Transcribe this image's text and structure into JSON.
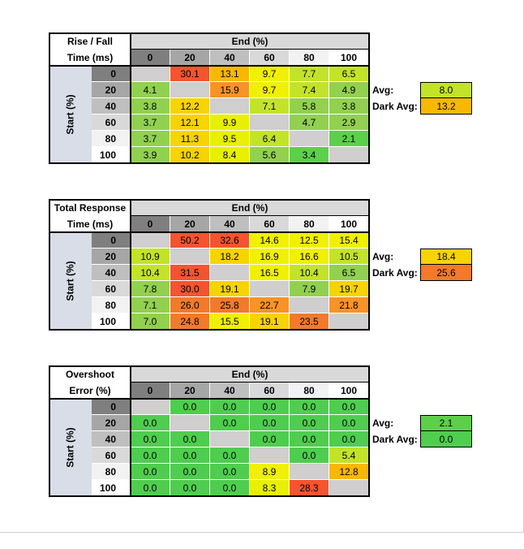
{
  "chart_data": [
    {
      "type": "table",
      "title_lines": [
        "Rise / Fall",
        "Time (ms)"
      ],
      "col_axis_label": "End (%)",
      "row_axis_label": "Start (%)",
      "columns": [
        "0",
        "20",
        "40",
        "60",
        "80",
        "100"
      ],
      "rows": [
        "0",
        "20",
        "40",
        "60",
        "80",
        "100"
      ],
      "values": [
        [
          "",
          "30.1",
          "13.1",
          "9.7",
          "7.7",
          "6.5"
        ],
        [
          "4.1",
          "",
          "15.9",
          "9.7",
          "7.4",
          "4.9"
        ],
        [
          "3.8",
          "12.2",
          "",
          "7.1",
          "5.8",
          "3.8"
        ],
        [
          "3.7",
          "12.1",
          "9.9",
          "",
          "4.7",
          "2.9"
        ],
        [
          "3.7",
          "11.3",
          "9.5",
          "6.4",
          "",
          "2.1"
        ],
        [
          "3.9",
          "10.2",
          "8.4",
          "5.6",
          "3.4",
          ""
        ]
      ],
      "colors": [
        [
          "#d0cece",
          "#f4542f",
          "#f9b800",
          "#f0f000",
          "#c3e329",
          "#c3e329"
        ],
        [
          "#92d050",
          "#d0cece",
          "#f89325",
          "#f0f000",
          "#c3e329",
          "#92d050"
        ],
        [
          "#92d050",
          "#f7d300",
          "#d0cece",
          "#c3e329",
          "#92d050",
          "#92d050"
        ],
        [
          "#92d050",
          "#f7d300",
          "#e8f000",
          "#d0cece",
          "#92d050",
          "#92d050"
        ],
        [
          "#92d050",
          "#f7d300",
          "#e8f000",
          "#c3e329",
          "#d0cece",
          "#5cd04a"
        ],
        [
          "#92d050",
          "#f7d300",
          "#e8f000",
          "#92d050",
          "#5cd04a",
          "#d0cece"
        ]
      ],
      "stats": [
        {
          "label": "Avg:",
          "value": "8.0",
          "color": "#c3e329"
        },
        {
          "label": "Dark Avg:",
          "value": "13.2",
          "color": "#f9b800"
        }
      ]
    },
    {
      "type": "table",
      "title_lines": [
        "Total Response",
        "Time (ms)"
      ],
      "col_axis_label": "End (%)",
      "row_axis_label": "Start (%)",
      "columns": [
        "0",
        "20",
        "40",
        "60",
        "80",
        "100"
      ],
      "rows": [
        "0",
        "20",
        "40",
        "60",
        "80",
        "100"
      ],
      "values": [
        [
          "",
          "50.2",
          "32.6",
          "14.6",
          "12.5",
          "15.4"
        ],
        [
          "10.9",
          "",
          "18.2",
          "16.9",
          "16.6",
          "10.5"
        ],
        [
          "10.4",
          "31.5",
          "",
          "16.5",
          "10.4",
          "6.5"
        ],
        [
          "7.8",
          "30.0",
          "19.1",
          "",
          "7.9",
          "19.7"
        ],
        [
          "7.1",
          "26.0",
          "25.8",
          "22.7",
          "",
          "21.8"
        ],
        [
          "7.0",
          "24.8",
          "15.5",
          "19.1",
          "23.5",
          ""
        ]
      ],
      "colors": [
        [
          "#d0cece",
          "#f4542f",
          "#f4542f",
          "#f0f000",
          "#f0f000",
          "#f0f000"
        ],
        [
          "#c3e329",
          "#d0cece",
          "#f7d300",
          "#f0f000",
          "#f0f000",
          "#c3e329"
        ],
        [
          "#c3e329",
          "#f4542f",
          "#d0cece",
          "#f0f000",
          "#c3e329",
          "#92d050"
        ],
        [
          "#92d050",
          "#f4542f",
          "#f7d300",
          "#d0cece",
          "#92d050",
          "#f7d300"
        ],
        [
          "#92d050",
          "#f37a2a",
          "#f37a2a",
          "#f89325",
          "#d0cece",
          "#f89325"
        ],
        [
          "#92d050",
          "#f37a2a",
          "#f0f000",
          "#f7d300",
          "#f37a2a",
          "#d0cece"
        ]
      ],
      "stats": [
        {
          "label": "Avg:",
          "value": "18.4",
          "color": "#f7d300"
        },
        {
          "label": "Dark Avg:",
          "value": "25.6",
          "color": "#f37a2a"
        }
      ]
    },
    {
      "type": "table",
      "title_lines": [
        "Overshoot",
        "Error (%)"
      ],
      "col_axis_label": "End (%)",
      "row_axis_label": "Start (%)",
      "columns": [
        "0",
        "20",
        "40",
        "60",
        "80",
        "100"
      ],
      "rows": [
        "0",
        "20",
        "40",
        "60",
        "80",
        "100"
      ],
      "values": [
        [
          "",
          "0.0",
          "0.0",
          "0.0",
          "0.0",
          "0.0"
        ],
        [
          "0.0",
          "",
          "0.0",
          "0.0",
          "0.0",
          "0.0"
        ],
        [
          "0.0",
          "0.0",
          "",
          "0.0",
          "0.0",
          "0.0"
        ],
        [
          "0.0",
          "0.0",
          "0.0",
          "",
          "0.0",
          "5.4"
        ],
        [
          "0.0",
          "0.0",
          "0.0",
          "8.9",
          "",
          "12.8"
        ],
        [
          "0.0",
          "0.0",
          "0.0",
          "8.3",
          "28.3",
          ""
        ]
      ],
      "colors": [
        [
          "#d0cece",
          "#4fcd4f",
          "#4fcd4f",
          "#4fcd4f",
          "#4fcd4f",
          "#4fcd4f"
        ],
        [
          "#4fcd4f",
          "#d0cece",
          "#4fcd4f",
          "#4fcd4f",
          "#4fcd4f",
          "#4fcd4f"
        ],
        [
          "#4fcd4f",
          "#4fcd4f",
          "#d0cece",
          "#4fcd4f",
          "#4fcd4f",
          "#4fcd4f"
        ],
        [
          "#4fcd4f",
          "#4fcd4f",
          "#4fcd4f",
          "#d0cece",
          "#4fcd4f",
          "#c3e329"
        ],
        [
          "#4fcd4f",
          "#4fcd4f",
          "#4fcd4f",
          "#f0f000",
          "#d0cece",
          "#f9b800"
        ],
        [
          "#4fcd4f",
          "#4fcd4f",
          "#4fcd4f",
          "#e8f000",
          "#f4542f",
          "#d0cece"
        ]
      ],
      "stats": [
        {
          "label": "Avg:",
          "value": "2.1",
          "color": "#5cd04a"
        },
        {
          "label": "Dark Avg:",
          "value": "0.0",
          "color": "#4fcd4f"
        }
      ]
    }
  ],
  "theme": {
    "col_head_colors": [
      "#7f7f7f",
      "#a6a6a6",
      "#bfbfbf",
      "#d9d9d9",
      "#f2f2f2",
      "#ffffff"
    ],
    "row_head_colors": [
      "#7f7f7f",
      "#a6a6a6",
      "#bfbfbf",
      "#d9d9d9",
      "#f2f2f2",
      "#ffffff"
    ]
  }
}
